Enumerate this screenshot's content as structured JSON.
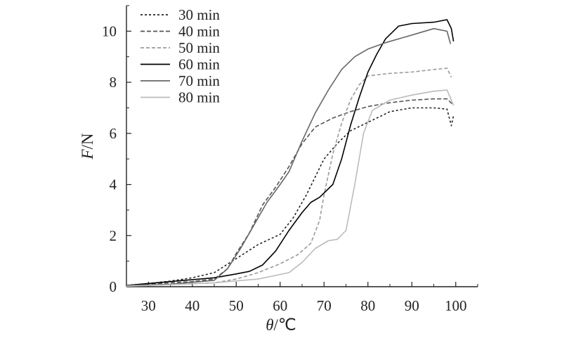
{
  "chart_data": {
    "type": "line",
    "xlabel": {
      "symbol": "θ",
      "unit": "/℃"
    },
    "ylabel": {
      "symbol": "F",
      "unit": "/N"
    },
    "xlim": [
      25,
      105
    ],
    "ylim": [
      0,
      11
    ],
    "xticks": [
      30,
      40,
      50,
      60,
      70,
      80,
      90,
      100
    ],
    "yticks": [
      0,
      2,
      4,
      6,
      8,
      10
    ],
    "grid": false,
    "legend_position": "top-left",
    "series": [
      {
        "name": "30 min",
        "color": "#222222",
        "dash": "3,3",
        "points": [
          [
            25,
            0.05
          ],
          [
            30,
            0.12
          ],
          [
            35,
            0.22
          ],
          [
            40,
            0.35
          ],
          [
            45,
            0.55
          ],
          [
            50,
            1.1
          ],
          [
            55,
            1.65
          ],
          [
            60,
            2.05
          ],
          [
            63,
            2.7
          ],
          [
            66,
            3.6
          ],
          [
            70,
            5.0
          ],
          [
            73,
            5.6
          ],
          [
            76,
            6.1
          ],
          [
            79,
            6.35
          ],
          [
            82,
            6.6
          ],
          [
            85,
            6.85
          ],
          [
            90,
            7.0
          ],
          [
            95,
            7.0
          ],
          [
            98,
            6.95
          ],
          [
            99,
            6.3
          ],
          [
            99.5,
            6.7
          ]
        ]
      },
      {
        "name": "40 min",
        "color": "#555555",
        "dash": "6,3",
        "points": [
          [
            25,
            0.05
          ],
          [
            30,
            0.1
          ],
          [
            35,
            0.15
          ],
          [
            40,
            0.2
          ],
          [
            45,
            0.3
          ],
          [
            48,
            0.7
          ],
          [
            50,
            1.3
          ],
          [
            53,
            2.1
          ],
          [
            56,
            3.2
          ],
          [
            59,
            3.9
          ],
          [
            62,
            4.7
          ],
          [
            65,
            5.6
          ],
          [
            68,
            6.25
          ],
          [
            72,
            6.6
          ],
          [
            76,
            6.85
          ],
          [
            80,
            7.05
          ],
          [
            85,
            7.2
          ],
          [
            90,
            7.3
          ],
          [
            95,
            7.35
          ],
          [
            98,
            7.35
          ],
          [
            99.5,
            7.1
          ]
        ]
      },
      {
        "name": "50 min",
        "color": "#9a9a9a",
        "dash": "5,3",
        "points": [
          [
            25,
            0.03
          ],
          [
            35,
            0.08
          ],
          [
            45,
            0.15
          ],
          [
            50,
            0.3
          ],
          [
            55,
            0.55
          ],
          [
            60,
            0.9
          ],
          [
            64,
            1.25
          ],
          [
            67,
            1.7
          ],
          [
            69,
            2.6
          ],
          [
            70,
            3.6
          ],
          [
            72,
            5.2
          ],
          [
            74,
            6.4
          ],
          [
            76,
            7.3
          ],
          [
            78,
            7.9
          ],
          [
            80,
            8.25
          ],
          [
            85,
            8.35
          ],
          [
            90,
            8.4
          ],
          [
            95,
            8.5
          ],
          [
            98,
            8.55
          ],
          [
            99,
            8.2
          ]
        ]
      },
      {
        "name": "60 min",
        "color": "#000000",
        "dash": "",
        "points": [
          [
            25,
            0.05
          ],
          [
            35,
            0.2
          ],
          [
            45,
            0.35
          ],
          [
            50,
            0.5
          ],
          [
            53,
            0.6
          ],
          [
            56,
            0.85
          ],
          [
            59,
            1.4
          ],
          [
            62,
            2.2
          ],
          [
            65,
            2.9
          ],
          [
            67,
            3.3
          ],
          [
            69,
            3.5
          ],
          [
            72,
            4.0
          ],
          [
            74,
            5.0
          ],
          [
            76,
            6.3
          ],
          [
            78,
            7.4
          ],
          [
            80,
            8.4
          ],
          [
            82,
            9.1
          ],
          [
            84,
            9.7
          ],
          [
            87,
            10.2
          ],
          [
            90,
            10.3
          ],
          [
            95,
            10.35
          ],
          [
            98,
            10.45
          ],
          [
            99,
            10.1
          ],
          [
            99.5,
            9.6
          ]
        ]
      },
      {
        "name": "70 min",
        "color": "#666666",
        "dash": "",
        "points": [
          [
            25,
            0.05
          ],
          [
            35,
            0.1
          ],
          [
            45,
            0.25
          ],
          [
            48,
            0.7
          ],
          [
            51,
            1.5
          ],
          [
            54,
            2.4
          ],
          [
            57,
            3.3
          ],
          [
            60,
            4.0
          ],
          [
            62,
            4.5
          ],
          [
            65,
            5.7
          ],
          [
            68,
            6.8
          ],
          [
            71,
            7.7
          ],
          [
            74,
            8.5
          ],
          [
            77,
            9.0
          ],
          [
            80,
            9.3
          ],
          [
            84,
            9.55
          ],
          [
            88,
            9.75
          ],
          [
            92,
            9.95
          ],
          [
            95,
            10.1
          ],
          [
            98,
            10.0
          ],
          [
            98.8,
            9.5
          ]
        ]
      },
      {
        "name": "80 min",
        "color": "#bbbbbb",
        "dash": "",
        "points": [
          [
            25,
            0.02
          ],
          [
            35,
            0.08
          ],
          [
            45,
            0.15
          ],
          [
            55,
            0.3
          ],
          [
            62,
            0.55
          ],
          [
            65,
            0.95
          ],
          [
            68,
            1.5
          ],
          [
            71,
            1.8
          ],
          [
            73,
            1.85
          ],
          [
            75,
            2.2
          ],
          [
            77,
            4.0
          ],
          [
            79,
            6.0
          ],
          [
            81,
            6.9
          ],
          [
            85,
            7.3
          ],
          [
            90,
            7.5
          ],
          [
            95,
            7.65
          ],
          [
            98,
            7.7
          ],
          [
            99.5,
            7.1
          ]
        ]
      }
    ]
  }
}
